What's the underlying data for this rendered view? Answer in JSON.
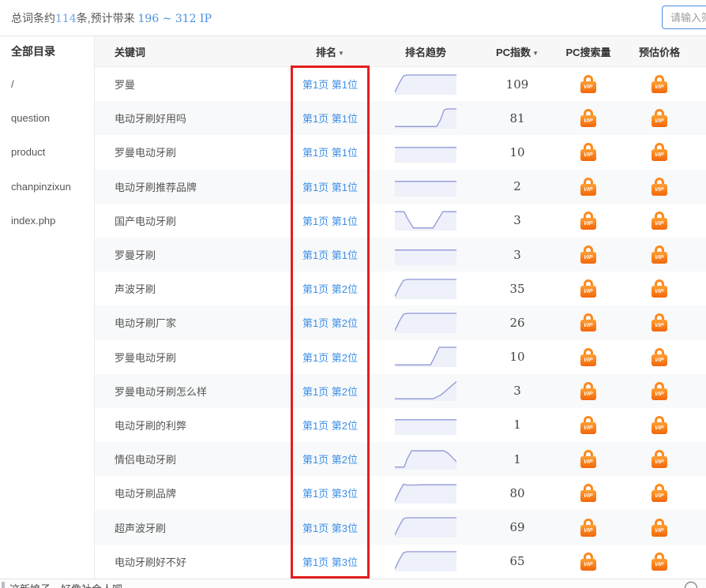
{
  "topbar": {
    "summary": {
      "prefix": "总词条约",
      "count": "114",
      "middle": "条,预计带来 ",
      "range": "196 ~ 312 IP"
    },
    "filter_input": {
      "placeholder": "请输入筛选词"
    }
  },
  "sidebar": {
    "title": "全部目录",
    "items": [
      "/",
      "question",
      "product",
      "chanpinzixun",
      "index.php"
    ]
  },
  "table": {
    "headers": {
      "keyword": "关键词",
      "rank": "排名",
      "trend": "排名趋势",
      "pc_index": "PC指数",
      "pc_search": "PC搜索量",
      "price": "预估价格"
    },
    "sort_arrow": "▼",
    "vip_label": "VIP",
    "rows": [
      {
        "keyword": "罗曼",
        "rank": "第1页 第1位",
        "pc_index": "109",
        "trend": [
          [
            0,
            0.05
          ],
          [
            0.07,
            0.55
          ],
          [
            0.14,
            0.95
          ],
          [
            0.2,
            1
          ],
          [
            1,
            1
          ]
        ]
      },
      {
        "keyword": "电动牙刷好用吗",
        "rank": "第1页 第1位",
        "pc_index": "81",
        "trend": [
          [
            0,
            0.03
          ],
          [
            0.68,
            0.03
          ],
          [
            0.74,
            0.4
          ],
          [
            0.8,
            0.95
          ],
          [
            0.85,
            1
          ],
          [
            1,
            1
          ]
        ]
      },
      {
        "keyword": "罗曼电动牙刷",
        "rank": "第1页 第1位",
        "pc_index": "10",
        "trend": [
          [
            0,
            0.75
          ],
          [
            1,
            0.75
          ]
        ]
      },
      {
        "keyword": "电动牙刷推荐品牌",
        "rank": "第1页 第1位",
        "pc_index": "2",
        "trend": [
          [
            0,
            0.75
          ],
          [
            1,
            0.75
          ]
        ]
      },
      {
        "keyword": "国产电动牙刷",
        "rank": "第1页 第1位",
        "pc_index": "3",
        "trend": [
          [
            0,
            0.95
          ],
          [
            0.15,
            0.95
          ],
          [
            0.2,
            0.6
          ],
          [
            0.3,
            0.05
          ],
          [
            0.62,
            0.05
          ],
          [
            0.7,
            0.5
          ],
          [
            0.78,
            0.95
          ],
          [
            1,
            0.95
          ]
        ]
      },
      {
        "keyword": "罗曼牙刷",
        "rank": "第1页 第1位",
        "pc_index": "3",
        "trend": [
          [
            0,
            0.75
          ],
          [
            1,
            0.75
          ]
        ]
      },
      {
        "keyword": "声波牙刷",
        "rank": "第1页 第2位",
        "pc_index": "35",
        "trend": [
          [
            0,
            0.05
          ],
          [
            0.07,
            0.55
          ],
          [
            0.14,
            0.95
          ],
          [
            0.2,
            1
          ],
          [
            1,
            1
          ]
        ]
      },
      {
        "keyword": "电动牙刷厂家",
        "rank": "第1页 第2位",
        "pc_index": "26",
        "trend": [
          [
            0,
            0.05
          ],
          [
            0.07,
            0.55
          ],
          [
            0.14,
            0.95
          ],
          [
            0.2,
            1
          ],
          [
            1,
            1
          ]
        ]
      },
      {
        "keyword": "罗曼电动牙刷",
        "rank": "第1页 第2位",
        "pc_index": "10",
        "trend": [
          [
            0,
            0.03
          ],
          [
            0.58,
            0.03
          ],
          [
            0.65,
            0.5
          ],
          [
            0.72,
            1
          ],
          [
            1,
            1
          ]
        ]
      },
      {
        "keyword": "罗曼电动牙刷怎么样",
        "rank": "第1页 第2位",
        "pc_index": "3",
        "trend": [
          [
            0,
            0.03
          ],
          [
            0.62,
            0.03
          ],
          [
            0.75,
            0.25
          ],
          [
            1,
            0.98
          ]
        ]
      },
      {
        "keyword": "电动牙刷的利弊",
        "rank": "第1页 第2位",
        "pc_index": "1",
        "trend": [
          [
            0,
            0.75
          ],
          [
            1,
            0.75
          ]
        ]
      },
      {
        "keyword": "情侣电动牙刷",
        "rank": "第1页 第2位",
        "pc_index": "1",
        "trend": [
          [
            0,
            0.05
          ],
          [
            0.15,
            0.05
          ],
          [
            0.2,
            0.5
          ],
          [
            0.27,
            0.95
          ],
          [
            0.8,
            0.95
          ],
          [
            0.87,
            0.8
          ],
          [
            1,
            0.35
          ]
        ]
      },
      {
        "keyword": "电动牙刷品牌",
        "rank": "第1页 第3位",
        "pc_index": "80",
        "trend": [
          [
            0,
            0.05
          ],
          [
            0.07,
            0.55
          ],
          [
            0.14,
            0.98
          ],
          [
            0.2,
            0.93
          ],
          [
            0.5,
            0.95
          ],
          [
            1,
            0.95
          ]
        ]
      },
      {
        "keyword": "超声波牙刷",
        "rank": "第1页 第3位",
        "pc_index": "69",
        "trend": [
          [
            0,
            0.05
          ],
          [
            0.07,
            0.55
          ],
          [
            0.14,
            0.95
          ],
          [
            0.2,
            1
          ],
          [
            1,
            1
          ]
        ]
      },
      {
        "keyword": "电动牙刷好不好",
        "rank": "第1页 第3位",
        "pc_index": "65",
        "trend": [
          [
            0,
            0.05
          ],
          [
            0.07,
            0.55
          ],
          [
            0.14,
            0.95
          ],
          [
            0.2,
            1
          ],
          [
            1,
            1
          ]
        ]
      }
    ]
  },
  "footer": {
    "text": "这新娘子，好像社会人吧"
  },
  "colors": {
    "link_blue": "#3d8fe8",
    "range_blue": "#4a90e2",
    "count_blue": "#6fa5e3",
    "highlight_red": "#e41e1e",
    "vip_orange": "#f8740f",
    "spark_line": "#8f98d8",
    "spark_fill": "#eef0fa"
  }
}
